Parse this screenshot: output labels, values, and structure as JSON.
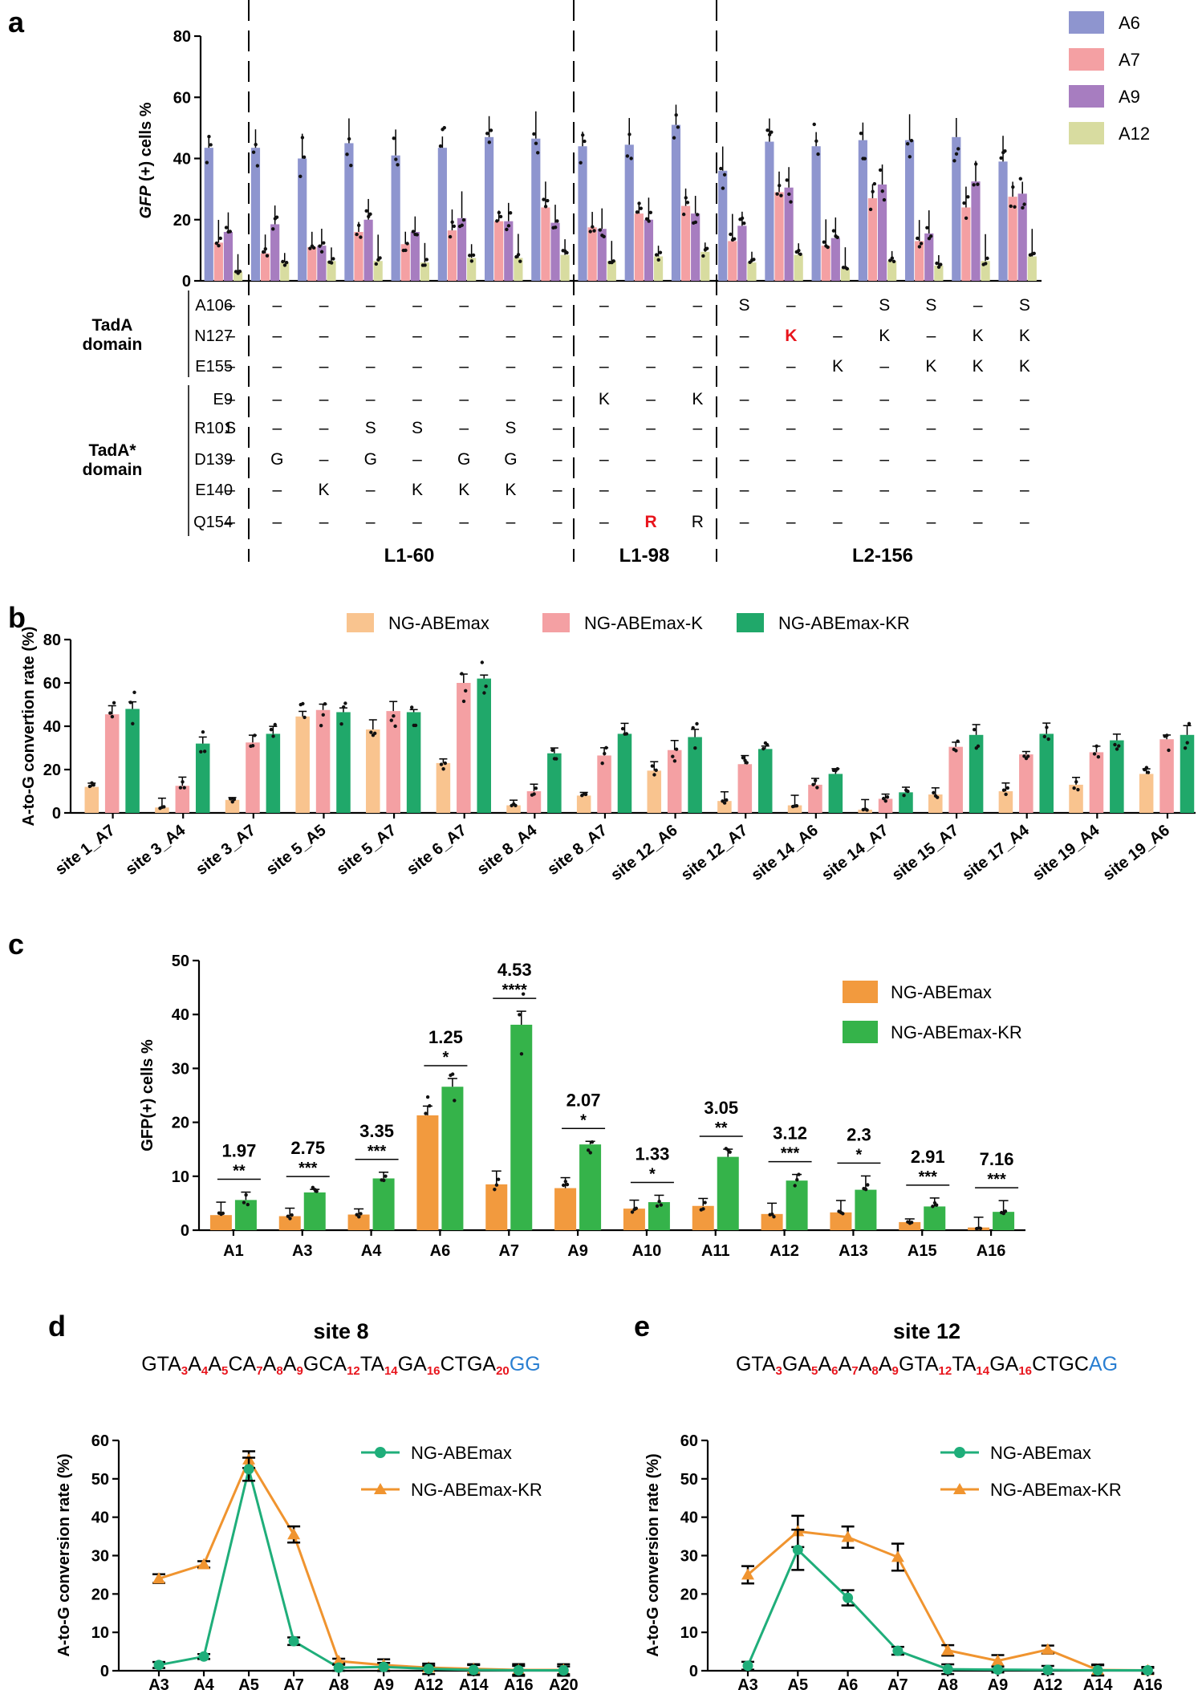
{
  "chart_data": [
    {
      "panel": "a",
      "type": "bar",
      "ylabel_italic": "GFP",
      "ylabel_rest": " (+) cells %",
      "ylim": [
        0,
        80
      ],
      "yticks": [
        0,
        20,
        40,
        60,
        80
      ],
      "legend_position": "top-right",
      "series": [
        {
          "name": "A6",
          "color": "#8e95cf",
          "values": [
            43.5,
            43.5,
            40,
            45,
            41,
            43.5,
            47,
            46.5,
            44,
            44.5,
            51,
            36,
            45.5,
            44,
            46,
            46,
            47,
            39
          ]
        },
        {
          "name": "A7",
          "color": "#f4a0a3",
          "values": [
            12.5,
            9,
            11,
            16,
            12,
            16.5,
            19.5,
            24,
            17.5,
            22,
            24.5,
            13,
            29,
            11.5,
            27,
            13,
            24,
            27.5
          ]
        },
        {
          "name": "A9",
          "color": "#a77dc0",
          "values": [
            16,
            18.5,
            11.5,
            20,
            16,
            20.5,
            19.5,
            19,
            17,
            20,
            22,
            18,
            30.5,
            14,
            31.5,
            15.5,
            32.5,
            28.5
          ]
        },
        {
          "name": "A12",
          "color": "#d8dca0",
          "values": [
            3,
            6,
            6.5,
            6.5,
            6,
            7.5,
            7.5,
            8.5,
            6.5,
            8,
            9.5,
            6,
            8.5,
            4,
            6.5,
            5,
            6.5,
            8
          ]
        }
      ],
      "row_labels": [
        "A106",
        "N127",
        "E155",
        "E9",
        "R101",
        "D139",
        "E140",
        "Q154"
      ],
      "domain_labels": [
        {
          "lines": [
            "TadA",
            "domain"
          ]
        },
        {
          "lines": [
            "TadA*",
            "domain"
          ]
        }
      ],
      "mutation_table": [
        [
          "–",
          "–",
          "–",
          "–",
          "–",
          "–",
          "–",
          "–",
          "–",
          "–",
          "–",
          "S",
          "–",
          "–",
          "S",
          "S",
          "–",
          "S"
        ],
        [
          "–",
          "–",
          "–",
          "–",
          "–",
          "–",
          "–",
          "–",
          "–",
          "–",
          "–",
          "–",
          "K",
          "–",
          "K",
          "–",
          "K",
          "K"
        ],
        [
          "–",
          "–",
          "–",
          "–",
          "–",
          "–",
          "–",
          "–",
          "–",
          "–",
          "–",
          "–",
          "–",
          "K",
          "–",
          "K",
          "K",
          "K"
        ],
        [
          "–",
          "–",
          "–",
          "–",
          "–",
          "–",
          "–",
          "–",
          "K",
          "–",
          "K",
          "–",
          "–",
          "–",
          "–",
          "–",
          "–",
          "–"
        ],
        [
          "S",
          "–",
          "–",
          "S",
          "S",
          "–",
          "S",
          "–",
          "–",
          "–",
          "–",
          "–",
          "–",
          "–",
          "–",
          "–",
          "–",
          "–"
        ],
        [
          "–",
          "G",
          "–",
          "G",
          "–",
          "G",
          "G",
          "–",
          "–",
          "–",
          "–",
          "–",
          "–",
          "–",
          "–",
          "–",
          "–",
          "–"
        ],
        [
          "–",
          "–",
          "K",
          "–",
          "K",
          "K",
          "K",
          "–",
          "–",
          "–",
          "–",
          "–",
          "–",
          "–",
          "–",
          "–",
          "–",
          "–"
        ],
        [
          "–",
          "–",
          "–",
          "–",
          "–",
          "–",
          "–",
          "–",
          "–",
          "R",
          "R",
          "–",
          "–",
          "–",
          "–",
          "–",
          "–",
          "–"
        ]
      ],
      "highlighted_cells": [
        [
          1,
          12
        ],
        [
          7,
          9
        ]
      ],
      "highlight_color": "#e8141c",
      "group_labels": [
        "L1-60",
        "L1-98",
        "L2-156"
      ]
    },
    {
      "panel": "b",
      "type": "bar",
      "ylabel": "A-to-G convertion rate (%)",
      "ylim": [
        0,
        80
      ],
      "yticks": [
        0,
        20,
        40,
        60,
        80
      ],
      "legend_position": "top",
      "categories": [
        "site 1_A7",
        "site 3_A4",
        "site 3_A7",
        "site 5_A5",
        "site 5_A7",
        "site 6_A7",
        "site 8_A4",
        "site 8_A7",
        "site 12_A6",
        "site 12_A7",
        "site 14_A6",
        "site 14_A7",
        "site 15_A7",
        "site 17_A4",
        "site 19_A4",
        "site 19_A6"
      ],
      "series": [
        {
          "name": "NG-ABEmax",
          "color": "#f9c48f",
          "values": [
            12,
            2.5,
            6,
            44.5,
            38.5,
            23,
            3.5,
            8,
            19.5,
            5.5,
            3.5,
            1.5,
            8.5,
            10,
            13,
            18
          ]
        },
        {
          "name": "NG-ABEmax-K",
          "color": "#f4a0a3",
          "values": [
            45.5,
            12.5,
            32.5,
            47.5,
            47,
            60,
            10,
            26.5,
            29,
            22.5,
            13,
            6.5,
            30.5,
            27,
            28,
            34
          ]
        },
        {
          "name": "NG-ABEmax-KR",
          "color": "#20a86a",
          "values": [
            48,
            32,
            36.5,
            46.5,
            46.5,
            62,
            27.5,
            36.5,
            35,
            29.5,
            18,
            9.5,
            36,
            36.5,
            33.5,
            36
          ]
        }
      ]
    },
    {
      "panel": "c",
      "type": "bar",
      "ylabel": "GFP(+) cells  %",
      "ylim": [
        0,
        50
      ],
      "yticks": [
        0,
        10,
        20,
        30,
        40,
        50
      ],
      "legend_position": "top-right",
      "categories": [
        "A1",
        "A3",
        "A4",
        "A6",
        "A7",
        "A9",
        "A10",
        "A11",
        "A12",
        "A13",
        "A15",
        "A16"
      ],
      "series": [
        {
          "name": "NG-ABEmax",
          "color": "#f29a3e",
          "values": [
            2.8,
            2.6,
            2.9,
            21.3,
            8.5,
            7.8,
            4.0,
            4.5,
            3.0,
            3.3,
            1.5,
            0.5
          ]
        },
        {
          "name": "NG-ABEmax-KR",
          "color": "#35b34a",
          "values": [
            5.6,
            7.0,
            9.6,
            26.6,
            38.1,
            15.9,
            5.2,
            13.6,
            9.2,
            7.5,
            4.4,
            3.4
          ]
        }
      ],
      "fold_changes": [
        "1.97",
        "2.75",
        "3.35",
        "1.25",
        "4.53",
        "2.07",
        "1.33",
        "3.05",
        "3.12",
        "2.3",
        "2.91",
        "7.16"
      ],
      "significance": [
        "**",
        "***",
        "***",
        "*",
        "****",
        "*",
        "*",
        "**",
        "***",
        "*",
        "***",
        "***"
      ]
    },
    {
      "panel": "d",
      "type": "line",
      "title": "site 8",
      "sequence": [
        {
          "t": "GTA"
        },
        {
          "s": "3"
        },
        {
          "t": "A"
        },
        {
          "s": "4"
        },
        {
          "t": "A"
        },
        {
          "s": "5"
        },
        {
          "t": "CA"
        },
        {
          "s": "7"
        },
        {
          "t": "A"
        },
        {
          "s": "8"
        },
        {
          "t": "A"
        },
        {
          "s": "9"
        },
        {
          "t": "GCA"
        },
        {
          "s": "12"
        },
        {
          "t": "TA"
        },
        {
          "s": "14"
        },
        {
          "t": "GA"
        },
        {
          "s": "16"
        },
        {
          "t": "CTGA"
        },
        {
          "s": "20"
        },
        {
          "p": "GG"
        }
      ],
      "ylabel": "A-to-G conversion rate (%)",
      "ylim": [
        0,
        60
      ],
      "yticks": [
        0,
        10,
        20,
        30,
        40,
        50,
        60
      ],
      "legend_position": "top-right",
      "x": [
        "A3",
        "A4",
        "A5",
        "A7",
        "A8",
        "A9",
        "A12",
        "A14",
        "A16",
        "A20"
      ],
      "series": [
        {
          "name": "NG-ABEmax",
          "color": "#1fae7a",
          "marker": "circle",
          "values": [
            1.5,
            3.7,
            52.5,
            7.7,
            0.8,
            1.0,
            0.5,
            0.2,
            0.1,
            0.1
          ]
        },
        {
          "name": "NG-ABEmax-KR",
          "color": "#f0942f",
          "marker": "triangle",
          "values": [
            24,
            27.7,
            55,
            35.5,
            2.5,
            1.5,
            0.8,
            0.5,
            0.2,
            0.2
          ]
        }
      ]
    },
    {
      "panel": "e",
      "type": "line",
      "title": "site 12",
      "sequence": [
        {
          "t": "GTA"
        },
        {
          "s": "3"
        },
        {
          "t": "GA"
        },
        {
          "s": "5"
        },
        {
          "t": "A"
        },
        {
          "s": "6"
        },
        {
          "t": "A"
        },
        {
          "s": "7"
        },
        {
          "t": "A"
        },
        {
          "s": "8"
        },
        {
          "t": "A"
        },
        {
          "s": "9"
        },
        {
          "t": "GTA"
        },
        {
          "s": "12"
        },
        {
          "t": "TA"
        },
        {
          "s": "14"
        },
        {
          "t": "GA"
        },
        {
          "s": "16"
        },
        {
          "t": "CTGC"
        },
        {
          "p": "AG"
        }
      ],
      "ylabel": "A-to-G conversion rate (%)",
      "ylim": [
        0,
        60
      ],
      "yticks": [
        0,
        10,
        20,
        30,
        40,
        50,
        60
      ],
      "legend_position": "top-right",
      "x": [
        "A3",
        "A5",
        "A6",
        "A7",
        "A8",
        "A9",
        "A12",
        "A14",
        "A16"
      ],
      "series": [
        {
          "name": "NG-ABEmax",
          "color": "#1fae7a",
          "marker": "circle",
          "values": [
            1.3,
            31.5,
            19,
            5.2,
            0.4,
            0.3,
            0.2,
            0.1,
            0.1
          ]
        },
        {
          "name": "NG-ABEmax-KR",
          "color": "#f0942f",
          "marker": "triangle",
          "values": [
            25,
            36.3,
            34.8,
            29.6,
            5.3,
            2.6,
            5.5,
            0.2,
            0.1
          ]
        }
      ]
    }
  ],
  "panel_letters": [
    "a",
    "b",
    "c",
    "d",
    "e"
  ],
  "colors": {
    "sequence_subscript": "#e8141c",
    "pam": "#2a7fd2",
    "axis": "#000000"
  }
}
